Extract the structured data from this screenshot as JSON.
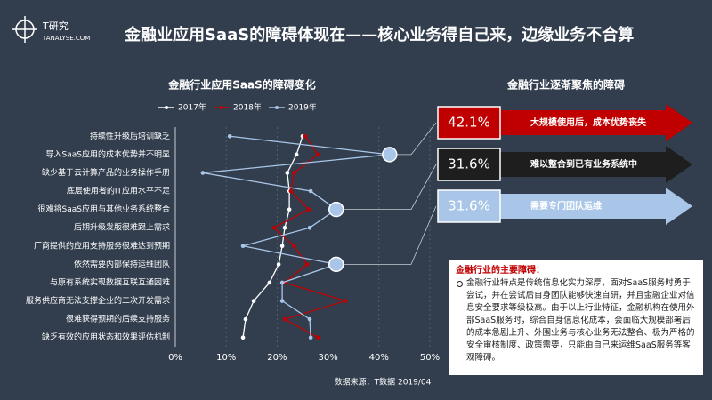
{
  "header": {
    "logo_name": "T研究",
    "logo_site": "TANALYSE.COM",
    "title": "金融业应用SaaS的障碍体现在——核心业务得自己来，边缘业务不合算"
  },
  "chart_data": {
    "type": "line",
    "title": "金融行业应用SaaS的障碍变化",
    "categories": [
      "持续性升级后培训缺乏",
      "导入SaaS应用的成本优势并不明显",
      "缺少基于云计算产品的业务操作手册",
      "底层使用者的IT应用水平不足",
      "很难将SaaS应用与其他业务系统整合",
      "后期升级发版很难跟上需求",
      "厂商提供的应用支持服务很难达到预期",
      "依然需要内部保持运维团队",
      "与原有系统实现数据互联互通困难",
      "服务供应商无法支撑企业的二次开发需求",
      "很难获得预期的后续支持服务",
      "缺乏有效的应用状态和效果评估机制"
    ],
    "series": [
      {
        "name": "2017年",
        "color": "#ffffff",
        "values": [
          25,
          23.8,
          22,
          22.4,
          22.4,
          21.5,
          21,
          20.3,
          18.5,
          15.4,
          13.8,
          13.3
        ]
      },
      {
        "name": "2018年",
        "color": "#c00000",
        "values": [
          25.5,
          28,
          23.3,
          22.7,
          26.2,
          19.4,
          23.3,
          25.9,
          21.5,
          33.4,
          21.5,
          28
        ]
      },
      {
        "name": "2019年",
        "color": "#a9c6e8",
        "values": [
          10.7,
          42.1,
          5.4,
          26.6,
          31.6,
          26.4,
          13.3,
          31.6,
          21,
          21,
          26.4,
          26.6
        ],
        "highlight": [
          1,
          4,
          7
        ]
      }
    ],
    "xlim": [
      0,
      50
    ],
    "xticks": [
      {
        "value": 0,
        "label": "0%"
      },
      {
        "value": 10,
        "label": "10%"
      },
      {
        "value": 20,
        "label": "20%"
      },
      {
        "value": 30,
        "label": "30%"
      },
      {
        "value": 40,
        "label": "40%"
      },
      {
        "value": 50,
        "label": "50%"
      }
    ],
    "grid": true
  },
  "focus_panel": {
    "title": "金融行业逐渐聚焦的障碍",
    "items": [
      {
        "percent": "42.1%",
        "text": "大规模使用后，成本优势丧失",
        "color": "#c00000"
      },
      {
        "percent": "31.6%",
        "text": "难以整合到已有业务系统中",
        "color": "#1e1e1e"
      },
      {
        "percent": "31.6%",
        "text": "需要专门团队运维",
        "color": "#a9c6e8"
      }
    ]
  },
  "note": {
    "title": "金融行业的主要障碍：",
    "body": "金融行业特点是传统信息化实力深厚，面对SaaS服务时勇于尝试，并在尝试后自身团队能够快速自研，并且金融企业对信息安全要求等级极高。由于以上行业特征，金融机构在使用外部SaaS服务时，综合自身信息化成本，会面临大规模部署后的成本急剧上升、外围业务与核心业务无法整合、极为严格的安全审核制度、政策需要，只能由自己来运维SaaS服务等客观障碍。"
  },
  "source": "数据来源：T数据 2019/04"
}
